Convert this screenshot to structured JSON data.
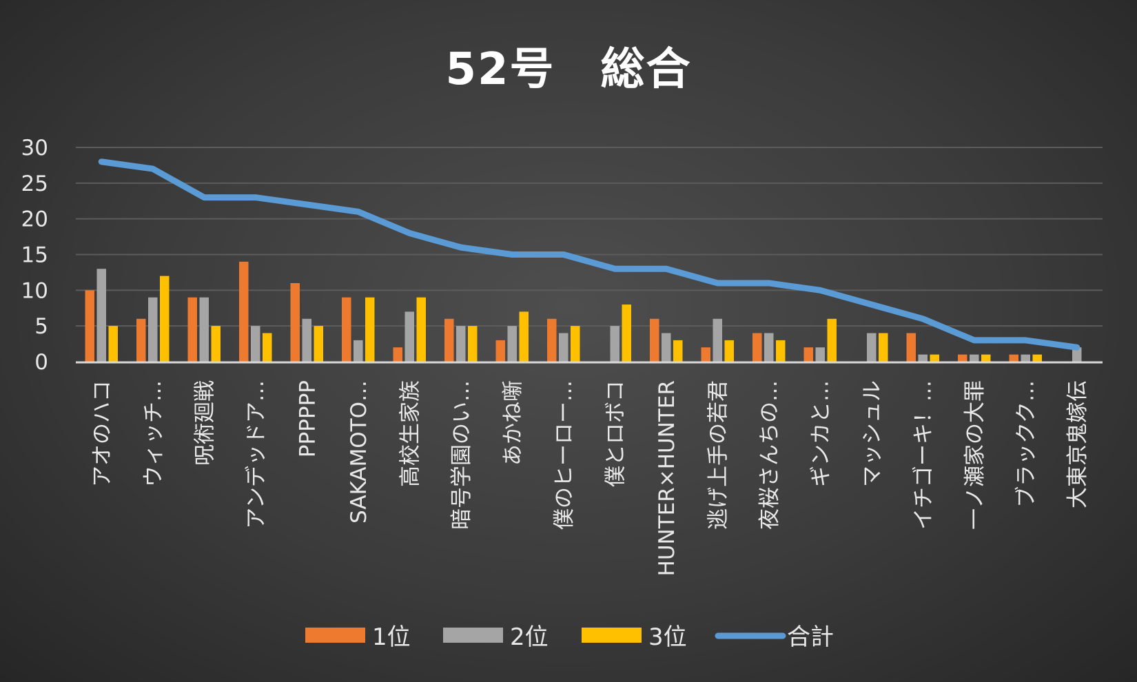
{
  "chart_data": {
    "type": "bar",
    "title": "52号　総合",
    "xlabel": "",
    "ylabel": "",
    "ylim": [
      0,
      30
    ],
    "yticks": [
      0,
      5,
      10,
      15,
      20,
      25,
      30
    ],
    "grid": true,
    "legend_position": "bottom",
    "categories": [
      "アオのハコ",
      "ウィッチ…",
      "呪術廻戦",
      "アンデッドア…",
      "PPPPPP",
      "SAKAMOTO…",
      "高校生家族",
      "暗号学園のい…",
      "あかね噺",
      "僕のヒーロー…",
      "僕とロボコ",
      "HUNTER×HUNTER",
      "逃げ上手の若君",
      "夜桜さんちの…",
      "ギンカと…",
      "マッシュル",
      "イチゴーキ！…",
      "一ノ瀬家の大罪",
      "ブラックク…",
      "大東京鬼嫁伝"
    ],
    "series": [
      {
        "name": "1位",
        "type": "bar",
        "color": "#ee7a30",
        "values": [
          10,
          6,
          9,
          14,
          11,
          9,
          2,
          6,
          3,
          6,
          0,
          6,
          2,
          4,
          2,
          0,
          4,
          1,
          1,
          0
        ]
      },
      {
        "name": "2位",
        "type": "bar",
        "color": "#a5a5a5",
        "values": [
          13,
          9,
          9,
          5,
          6,
          3,
          7,
          5,
          5,
          4,
          5,
          4,
          6,
          4,
          2,
          4,
          1,
          1,
          1,
          2
        ]
      },
      {
        "name": "3位",
        "type": "bar",
        "color": "#ffc000",
        "values": [
          5,
          12,
          5,
          4,
          5,
          9,
          9,
          5,
          7,
          5,
          8,
          3,
          3,
          3,
          6,
          4,
          1,
          1,
          1,
          0
        ]
      },
      {
        "name": "合計",
        "type": "line",
        "color": "#5b9bd5",
        "values": [
          28,
          27,
          23,
          23,
          22,
          21,
          18,
          16,
          15,
          15,
          13,
          13,
          11,
          11,
          10,
          8,
          6,
          3,
          3,
          2
        ]
      }
    ]
  }
}
